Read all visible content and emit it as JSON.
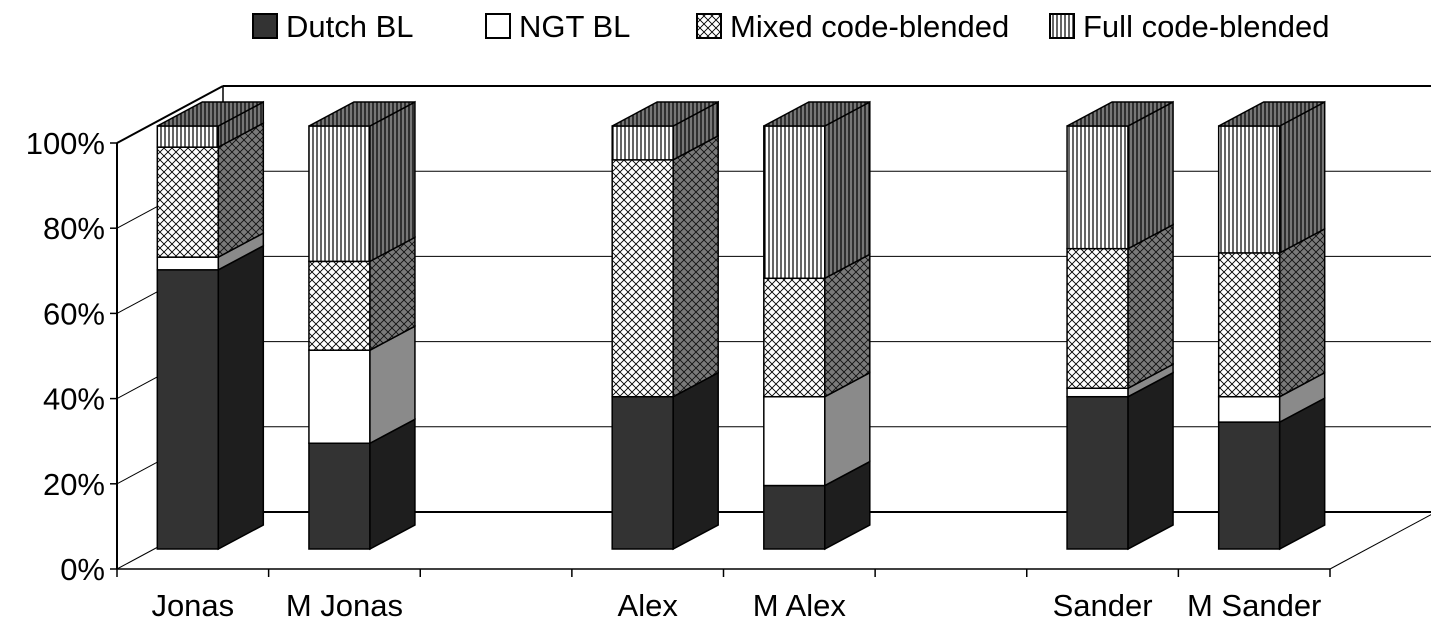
{
  "chart_data": {
    "type": "bar",
    "stacked": true,
    "style": "3d-stacked-column-100-percent",
    "title": "",
    "xlabel": "",
    "ylabel": "",
    "ylim": [
      0,
      100
    ],
    "yticks": [
      "0%",
      "20%",
      "40%",
      "60%",
      "80%",
      "100%"
    ],
    "grid": true,
    "legend_position": "top",
    "categories": [
      "Jonas",
      "M Jonas",
      "Alex",
      "M Alex",
      "Sander",
      "M Sander"
    ],
    "series": [
      {
        "name": "Dutch BL",
        "values": [
          66,
          25,
          36,
          15,
          36,
          30
        ],
        "color": "#333333",
        "pattern": "solid"
      },
      {
        "name": "NGT BL",
        "values": [
          3,
          22,
          0,
          21,
          2,
          6
        ],
        "color": "#ffffff",
        "pattern": "solid"
      },
      {
        "name": "Mixed code-blended",
        "values": [
          26,
          21,
          56,
          28,
          33,
          34
        ],
        "color": "#ffffff",
        "pattern": "crosshatch"
      },
      {
        "name": "Full code-blended",
        "values": [
          5,
          32,
          8,
          36,
          29,
          30
        ],
        "color": "#ffffff",
        "pattern": "vertical-lines"
      }
    ]
  }
}
